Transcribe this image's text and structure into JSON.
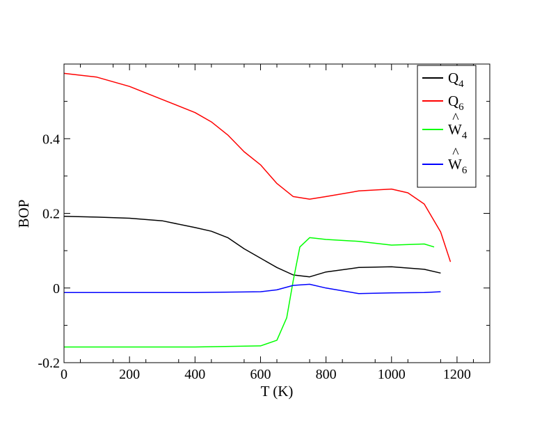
{
  "chart_data": {
    "type": "line",
    "title": "",
    "xlabel": "T (K)",
    "ylabel": "BOP",
    "xlim": [
      0,
      1300
    ],
    "ylim": [
      -0.2,
      0.6
    ],
    "xticks": [
      0,
      200,
      400,
      600,
      800,
      1000,
      1200
    ],
    "xtick_labels": [
      "0",
      "200",
      "400",
      "600",
      "800",
      "1000",
      "1200"
    ],
    "yticks": [
      -0.2,
      0,
      0.2,
      0.4
    ],
    "ytick_labels": [
      "-0.2",
      "0",
      "0.2",
      "0.4"
    ],
    "grid": false,
    "legend_position": "top-right",
    "series": [
      {
        "name": "Q4",
        "legend_base": "Q",
        "legend_sub": "4",
        "legend_hat": false,
        "color": "#000000",
        "x": [
          0,
          100,
          200,
          300,
          400,
          450,
          500,
          550,
          600,
          650,
          700,
          750,
          800,
          900,
          1000,
          1100,
          1150
        ],
        "y": [
          0.192,
          0.19,
          0.187,
          0.18,
          0.162,
          0.152,
          0.135,
          0.105,
          0.08,
          0.055,
          0.035,
          0.03,
          0.043,
          0.055,
          0.057,
          0.05,
          0.04
        ]
      },
      {
        "name": "Q6",
        "legend_base": "Q",
        "legend_sub": "6",
        "legend_hat": false,
        "color": "#ff0000",
        "x": [
          0,
          100,
          200,
          300,
          400,
          450,
          500,
          550,
          600,
          650,
          700,
          750,
          800,
          900,
          1000,
          1050,
          1100,
          1150,
          1180
        ],
        "y": [
          0.575,
          0.565,
          0.54,
          0.505,
          0.47,
          0.445,
          0.41,
          0.365,
          0.33,
          0.28,
          0.245,
          0.238,
          0.245,
          0.26,
          0.265,
          0.255,
          0.225,
          0.15,
          0.07
        ]
      },
      {
        "name": "W4",
        "legend_base": "W",
        "legend_sub": "4",
        "legend_hat": true,
        "color": "#00ff00",
        "x": [
          0,
          200,
          400,
          600,
          650,
          680,
          700,
          720,
          750,
          800,
          900,
          1000,
          1100,
          1130
        ],
        "y": [
          -0.158,
          -0.158,
          -0.158,
          -0.155,
          -0.14,
          -0.08,
          0.02,
          0.11,
          0.135,
          0.13,
          0.125,
          0.115,
          0.118,
          0.11
        ]
      },
      {
        "name": "W6",
        "legend_base": "W",
        "legend_sub": "6",
        "legend_hat": true,
        "color": "#0000ff",
        "x": [
          0,
          200,
          400,
          600,
          650,
          700,
          750,
          800,
          900,
          1000,
          1100,
          1150
        ],
        "y": [
          -0.012,
          -0.012,
          -0.012,
          -0.01,
          -0.005,
          0.007,
          0.01,
          0.0,
          -0.015,
          -0.013,
          -0.012,
          -0.01
        ]
      }
    ]
  }
}
